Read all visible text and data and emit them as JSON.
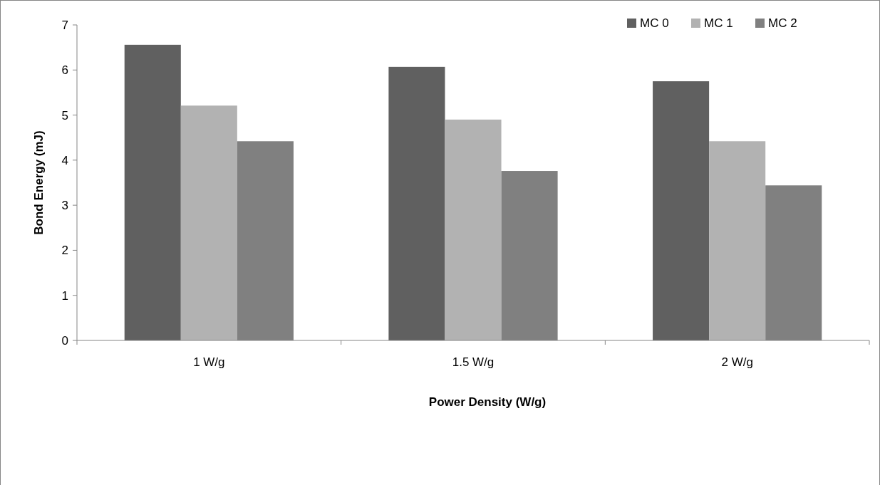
{
  "chart_data": {
    "type": "bar",
    "xlabel": "Power Density (W/g)",
    "ylabel": "Bond Energy (mJ)",
    "categories": [
      "1 W/g",
      "1.5 W/g",
      "2 W/g"
    ],
    "series": [
      {
        "name": "MC 0",
        "color": "#606060",
        "values": [
          6.56,
          6.07,
          5.75
        ]
      },
      {
        "name": "MC 1",
        "color": "#b2b2b2",
        "values": [
          5.21,
          4.9,
          4.42
        ]
      },
      {
        "name": "MC 2",
        "color": "#808080",
        "values": [
          4.42,
          3.76,
          3.44
        ]
      }
    ],
    "ylim": [
      0,
      7
    ],
    "yticks": [
      0,
      1,
      2,
      3,
      4,
      5,
      6,
      7
    ],
    "legend": "top right"
  }
}
